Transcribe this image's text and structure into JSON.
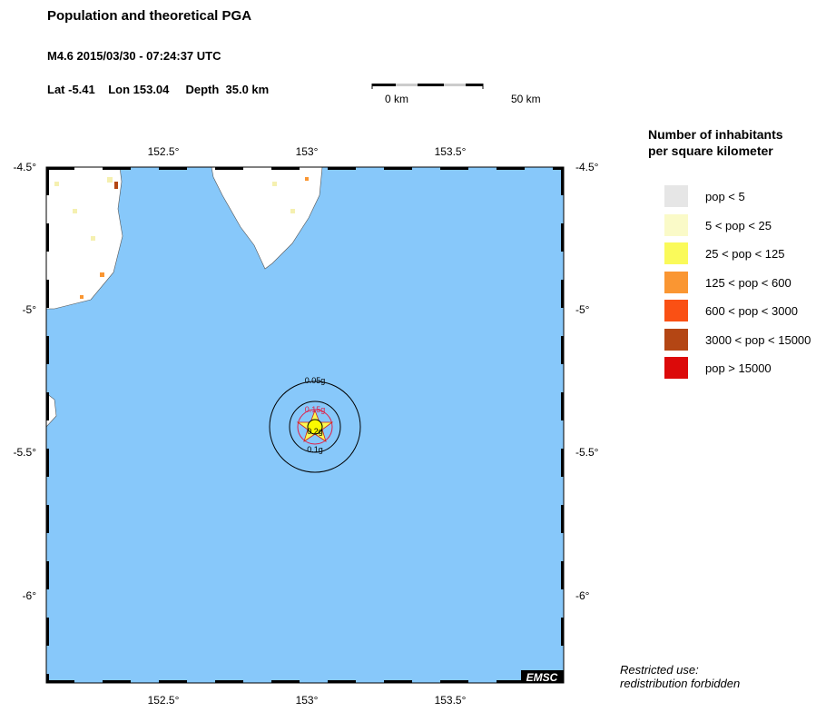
{
  "header": {
    "title": "Population and theoretical PGA",
    "event": "M4.6  2015/03/30 - 07:24:37 UTC",
    "location": "Lat -5.41    Lon 153.04     Depth  35.0 km"
  },
  "scale": {
    "left": "0 km",
    "right": "50 km"
  },
  "map": {
    "lon_ticks": [
      "152.5°",
      "153°",
      "153.5°"
    ],
    "lat_ticks": [
      "-4.5°",
      "-5°",
      "-5.5°",
      "-6°"
    ],
    "ocean_color": "#87c8fa",
    "land_color": "#ffffff",
    "epicenter": {
      "lat": -5.41,
      "lon": 153.04
    },
    "pga_labels": [
      "0.05g",
      "0.15g",
      "0.2g",
      "0.1g"
    ],
    "logo": "EMSC"
  },
  "legend": {
    "title1": "Number of inhabitants",
    "title2": "per square kilometer",
    "items": [
      {
        "label": "pop < 5",
        "color": "#e6e6e6"
      },
      {
        "label": "5 < pop < 25",
        "color": "#fafac8"
      },
      {
        "label": "25 < pop < 125",
        "color": "#fafa5a"
      },
      {
        "label": "125 < pop < 600",
        "color": "#fa9632"
      },
      {
        "label": "600 < pop < 3000",
        "color": "#fa5014"
      },
      {
        "label": "3000 < pop < 15000",
        "color": "#b44614"
      },
      {
        "label": "pop > 15000",
        "color": "#dc0a0a"
      }
    ]
  },
  "footer": {
    "line1": "Restricted use:",
    "line2": "redistribution forbidden"
  }
}
